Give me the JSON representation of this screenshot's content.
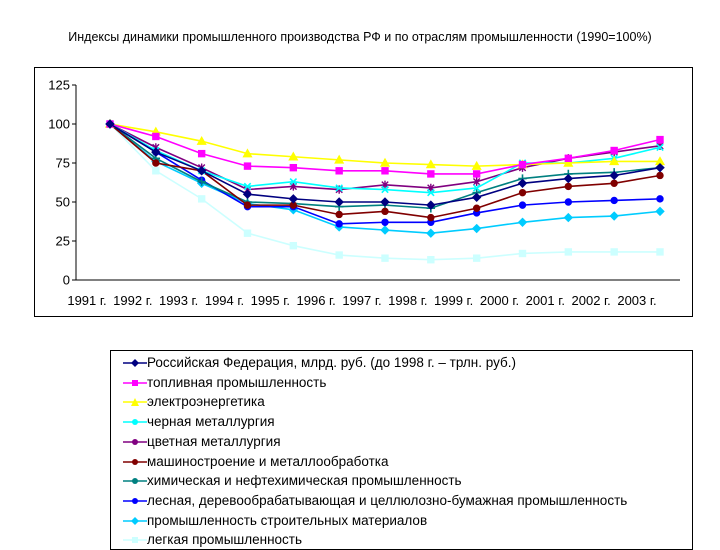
{
  "chart_data": {
    "type": "line",
    "title": "Индексы динамики промышленного производства РФ и по отраслям промышленности (1990=100%)",
    "xlabel": "",
    "ylabel": "",
    "categories": [
      "1991 г.",
      "1992 г.",
      "1993 г.",
      "1994 г.",
      "1995 г.",
      "1996 г.",
      "1997 г.",
      "1998 г.",
      "1999 г.",
      "2000 г.",
      "2001 г.",
      "2002 г.",
      "2003 г."
    ],
    "ylim": [
      0,
      125
    ],
    "yticks": [
      0,
      25,
      50,
      75,
      100,
      125
    ],
    "grid": false,
    "legend_position": "bottom",
    "series": [
      {
        "name": "Российская Федерация, млрд. руб. (до 1998 г. – трлн. руб.)",
        "color": "#000080",
        "marker": "diamond",
        "values": [
          100,
          82,
          70,
          55,
          52,
          50,
          50,
          48,
          53,
          62,
          65,
          67,
          72
        ]
      },
      {
        "name": "топливная промышленность",
        "color": "#ff00ff",
        "marker": "square",
        "values": [
          100,
          92,
          81,
          73,
          72,
          70,
          70,
          68,
          68,
          74,
          78,
          83,
          90
        ]
      },
      {
        "name": "электроэнергетика",
        "color": "#ffff00",
        "marker": "triangle",
        "values": [
          100,
          95,
          89,
          81,
          79,
          77,
          75,
          74,
          73,
          74,
          75,
          76,
          76
        ]
      },
      {
        "name": "черная металлургия",
        "color": "#00ffff",
        "marker": "x",
        "values": [
          100,
          83,
          70,
          60,
          63,
          59,
          58,
          56,
          59,
          75,
          75,
          78,
          85
        ]
      },
      {
        "name": "цветная металлургия",
        "color": "#800080",
        "marker": "star",
        "values": [
          100,
          85,
          72,
          58,
          60,
          58,
          61,
          59,
          63,
          72,
          78,
          82,
          86
        ]
      },
      {
        "name": "машиностроение и металлообработка",
        "color": "#800000",
        "marker": "circle",
        "values": [
          100,
          75,
          70,
          48,
          48,
          42,
          44,
          40,
          46,
          56,
          60,
          62,
          67
        ]
      },
      {
        "name": "химическая и нефтехимическая промышленность",
        "color": "#008080",
        "marker": "plus",
        "values": [
          100,
          78,
          63,
          50,
          49,
          47,
          48,
          46,
          56,
          65,
          68,
          69,
          72
        ]
      },
      {
        "name": "лесная, деревообрабатывающая и целлюлозно-бумажная промышленность",
        "color": "#0000ff",
        "marker": "circle",
        "values": [
          100,
          82,
          64,
          47,
          47,
          36,
          37,
          37,
          43,
          48,
          50,
          51,
          52
        ]
      },
      {
        "name": "промышленность строительных материалов",
        "color": "#00ccff",
        "marker": "diamond",
        "values": [
          100,
          76,
          62,
          49,
          45,
          34,
          32,
          30,
          33,
          37,
          40,
          41,
          44
        ]
      },
      {
        "name": "легкая промышленность",
        "color": "#ccffff",
        "marker": "square",
        "values": [
          100,
          70,
          52,
          30,
          22,
          16,
          14,
          13,
          14,
          17,
          18,
          18,
          18
        ]
      }
    ]
  }
}
